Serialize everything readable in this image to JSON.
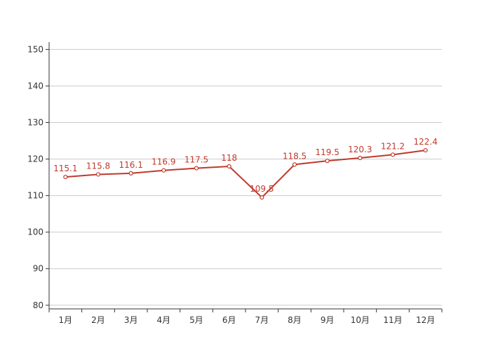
{
  "chart_data": {
    "type": "line",
    "categories": [
      "1月",
      "2月",
      "3月",
      "4月",
      "5月",
      "6月",
      "7月",
      "8月",
      "9月",
      "10月",
      "11月",
      "12月"
    ],
    "series": [
      {
        "values": [
          115.1,
          115.8,
          116.1,
          116.9,
          117.5,
          118,
          109.5,
          118.5,
          119.5,
          120.3,
          121.2,
          122.4
        ]
      }
    ],
    "ylim": [
      79,
      152
    ],
    "yticks": [
      80,
      90,
      100,
      110,
      120,
      130,
      140,
      150
    ],
    "grid": true,
    "color": "#c0392b"
  }
}
